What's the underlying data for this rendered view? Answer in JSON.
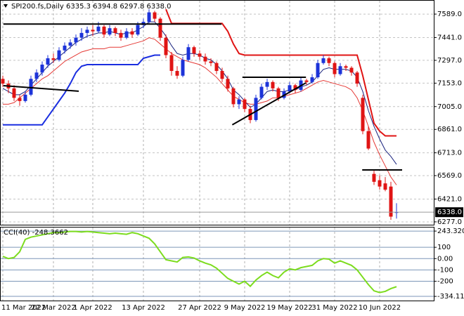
{
  "chart_data": [
    {
      "type": "candlestick",
      "title": "SPI200.fs,Daily  6335.3 6394.8 6297.8 6338.0",
      "categories": [
        "11 Mar 2022",
        null,
        null,
        null,
        null,
        null,
        null,
        null,
        null,
        "22 Mar 2022",
        null,
        null,
        null,
        null,
        null,
        null,
        "1 Apr 2022",
        null,
        null,
        null,
        null,
        null,
        null,
        null,
        null,
        "13 Apr 2022",
        null,
        null,
        null,
        null,
        null,
        null,
        null,
        null,
        null,
        "27 Apr 2022",
        null,
        null,
        null,
        null,
        null,
        null,
        null,
        "9 May 2022",
        null,
        null,
        null,
        null,
        null,
        null,
        null,
        "19 May 2022",
        null,
        null,
        null,
        null,
        null,
        null,
        null,
        "31 May 2022",
        null,
        null,
        null,
        null,
        null,
        null,
        null,
        "10 Jun 2022",
        null,
        null,
        null
      ],
      "ohlc": [
        [
          7180,
          7200,
          7130,
          7150
        ],
        [
          7150,
          7170,
          7090,
          7120
        ],
        [
          7120,
          7140,
          7040,
          7060
        ],
        [
          7060,
          7080,
          7010,
          7040
        ],
        [
          7040,
          7100,
          7030,
          7080
        ],
        [
          7080,
          7200,
          7070,
          7180
        ],
        [
          7180,
          7240,
          7160,
          7220
        ],
        [
          7220,
          7290,
          7200,
          7270
        ],
        [
          7270,
          7330,
          7250,
          7310
        ],
        [
          7310,
          7340,
          7280,
          7300
        ],
        [
          7300,
          7380,
          7290,
          7360
        ],
        [
          7360,
          7410,
          7340,
          7390
        ],
        [
          7390,
          7430,
          7370,
          7410
        ],
        [
          7410,
          7460,
          7390,
          7440
        ],
        [
          7440,
          7500,
          7420,
          7470
        ],
        [
          7470,
          7510,
          7440,
          7490
        ],
        [
          7490,
          7520,
          7450,
          7480
        ],
        [
          7480,
          7540,
          7470,
          7510
        ],
        [
          7510,
          7520,
          7440,
          7460
        ],
        [
          7460,
          7520,
          7450,
          7500
        ],
        [
          7500,
          7510,
          7450,
          7470
        ],
        [
          7470,
          7490,
          7420,
          7440
        ],
        [
          7440,
          7500,
          7430,
          7480
        ],
        [
          7480,
          7500,
          7440,
          7460
        ],
        [
          7460,
          7540,
          7450,
          7520
        ],
        [
          7520,
          7560,
          7500,
          7540
        ],
        [
          7540,
          7620,
          7530,
          7600
        ],
        [
          7600,
          7610,
          7540,
          7560
        ],
        [
          7560,
          7570,
          7420,
          7440
        ],
        [
          7440,
          7460,
          7310,
          7330
        ],
        [
          7330,
          7350,
          7200,
          7230
        ],
        [
          7230,
          7260,
          7180,
          7200
        ],
        [
          7200,
          7320,
          7190,
          7300
        ],
        [
          7300,
          7400,
          7290,
          7380
        ],
        [
          7380,
          7390,
          7320,
          7340
        ],
        [
          7340,
          7360,
          7300,
          7320
        ],
        [
          7320,
          7340,
          7270,
          7290
        ],
        [
          7290,
          7310,
          7260,
          7280
        ],
        [
          7280,
          7290,
          7210,
          7230
        ],
        [
          7230,
          7250,
          7160,
          7180
        ],
        [
          7180,
          7200,
          7100,
          7120
        ],
        [
          7120,
          7130,
          7000,
          7020
        ],
        [
          7020,
          7070,
          6990,
          7050
        ],
        [
          7050,
          7060,
          6970,
          6990
        ],
        [
          6990,
          7010,
          6900,
          6920
        ],
        [
          6920,
          7080,
          6910,
          7060
        ],
        [
          7060,
          7150,
          7050,
          7130
        ],
        [
          7130,
          7180,
          7110,
          7160
        ],
        [
          7160,
          7170,
          7100,
          7120
        ],
        [
          7120,
          7130,
          7040,
          7060
        ],
        [
          7060,
          7120,
          7050,
          7100
        ],
        [
          7100,
          7160,
          7090,
          7140
        ],
        [
          7140,
          7150,
          7090,
          7110
        ],
        [
          7110,
          7190,
          7100,
          7170
        ],
        [
          7170,
          7180,
          7140,
          7160
        ],
        [
          7160,
          7210,
          7150,
          7190
        ],
        [
          7190,
          7300,
          7180,
          7280
        ],
        [
          7280,
          7330,
          7270,
          7310
        ],
        [
          7310,
          7320,
          7260,
          7280
        ],
        [
          7280,
          7290,
          7190,
          7210
        ],
        [
          7210,
          7280,
          7200,
          7260
        ],
        [
          7260,
          7270,
          7230,
          7250
        ],
        [
          7250,
          7260,
          7200,
          7220
        ],
        [
          7220,
          7230,
          7130,
          7150
        ],
        [
          7060,
          7080,
          6830,
          6850
        ],
        [
          6850,
          6880,
          6730,
          6740
        ],
        [
          6580,
          6600,
          6510,
          6530
        ],
        [
          6540,
          6570,
          6480,
          6500
        ],
        [
          6520,
          6560,
          6470,
          6480
        ],
        [
          6500,
          6530,
          6290,
          6310
        ],
        [
          6335.3,
          6394.8,
          6297.8,
          6338.0
        ]
      ],
      "up_color": "#1c33d9",
      "down_color": "#e01414",
      "series": [
        {
          "color": "#e01414",
          "width": 2,
          "values": [
            null,
            null,
            null,
            null,
            null,
            null,
            null,
            null,
            null,
            null,
            null,
            null,
            null,
            null,
            null,
            null,
            null,
            null,
            null,
            null,
            null,
            null,
            null,
            null,
            null,
            null,
            null,
            null,
            null,
            7620,
            7530,
            7530,
            7530,
            7530,
            7530,
            7530,
            7530,
            7530,
            7530,
            7530,
            7480,
            7400,
            7340,
            7330,
            7330,
            7330,
            7330,
            7330,
            7330,
            7330,
            7330,
            7330,
            7330,
            7330,
            7330,
            7330,
            7330,
            7330,
            7330,
            7330,
            7330,
            7330,
            7330,
            7330,
            7200,
            7050,
            6900,
            6850,
            6820,
            6820,
            6820
          ]
        },
        {
          "color": "#1a2ee0",
          "width": 2,
          "values": [
            6890,
            6890,
            6890,
            6890,
            6890,
            6890,
            6890,
            6890,
            6940,
            6990,
            7040,
            7090,
            7150,
            7220,
            7260,
            7270,
            7270,
            7270,
            7270,
            7270,
            7270,
            7270,
            7270,
            7270,
            7270,
            7310,
            7320,
            7330,
            7330,
            null,
            null,
            null,
            null,
            null,
            null,
            null,
            null,
            null,
            null,
            null,
            null,
            null,
            null,
            null,
            null,
            null,
            null,
            null,
            null,
            null,
            null,
            null,
            null,
            null,
            null,
            null,
            null,
            null,
            null,
            null,
            null,
            null,
            null,
            null,
            null,
            null,
            null,
            null,
            null,
            null,
            null
          ]
        },
        {
          "color": "#e53935",
          "width": 1,
          "values": [
            7020,
            7020,
            7030,
            7060,
            7090,
            7120,
            7150,
            7180,
            7200,
            7230,
            7260,
            7290,
            7310,
            7330,
            7350,
            7360,
            7370,
            7370,
            7370,
            7380,
            7380,
            7380,
            7390,
            7400,
            7410,
            7420,
            7440,
            7430,
            7400,
            7370,
            7340,
            7320,
            7300,
            7290,
            7280,
            7270,
            7250,
            7220,
            7190,
            7150,
            7110,
            7070,
            7050,
            7030,
            7020,
            7020,
            7030,
            7040,
            7060,
            7060,
            7070,
            7080,
            7090,
            7100,
            7120,
            7140,
            7160,
            7170,
            7160,
            7150,
            7140,
            7130,
            7110,
            7060,
            6980,
            6880,
            6780,
            6700,
            6630,
            6560,
            6510
          ]
        },
        {
          "color": "#1a237e",
          "width": 1,
          "values": [
            7120,
            7100,
            7080,
            7080,
            7100,
            7140,
            7180,
            7220,
            7260,
            7290,
            7320,
            7350,
            7380,
            7410,
            7430,
            7450,
            7460,
            7470,
            7470,
            7480,
            7470,
            7460,
            7470,
            7470,
            7490,
            7510,
            7540,
            7540,
            7500,
            7450,
            7390,
            7340,
            7330,
            7340,
            7340,
            7330,
            7310,
            7300,
            7270,
            7230,
            7180,
            7110,
            7080,
            7040,
            7000,
            7020,
            7060,
            7100,
            7110,
            7100,
            7100,
            7110,
            7110,
            7130,
            7140,
            7160,
            7200,
            7240,
            7250,
            7240,
            7240,
            7240,
            7230,
            7190,
            7100,
            6980,
            6880,
            6800,
            6730,
            6690,
            6640
          ]
        }
      ],
      "trendlines": [
        {
          "x": [
            0.1,
            38.9
          ],
          "y": [
            7526,
            7526
          ]
        },
        {
          "x": [
            0.1,
            13.5
          ],
          "y": [
            7137,
            7102
          ]
        },
        {
          "x": [
            42.6,
            53.9
          ],
          "y": [
            7190,
            7190
          ]
        },
        {
          "x": [
            40.8,
            53.9
          ],
          "y": [
            6890,
            7155
          ]
        },
        {
          "x": [
            63.9,
            71
          ],
          "y": [
            6605,
            6605
          ]
        }
      ],
      "last_price": {
        "value": 6338.0,
        "label": "6338.0"
      },
      "ylim": [
        6259,
        7678
      ],
      "yticks": [
        {
          "value": 7589,
          "label": "7589.0"
        },
        {
          "value": 7441,
          "label": "7441.0"
        },
        {
          "value": 7297,
          "label": "7297.0"
        },
        {
          "value": 7153,
          "label": "7153.0"
        },
        {
          "value": 7005,
          "label": "7005.0"
        },
        {
          "value": 6861,
          "label": "6861.0"
        },
        {
          "value": 6713,
          "label": "6713.0"
        },
        {
          "value": 6569,
          "label": "6569.0"
        },
        {
          "value": 6421,
          "label": "6421.0"
        },
        {
          "value": 6277,
          "label": "6277.0"
        }
      ],
      "grid": true,
      "grid_color": "#c4c4c4",
      "grid_dashed": true
    },
    {
      "type": "line",
      "title": "CCI(40) -248.3662",
      "color": "#7cdc1e",
      "width": 2,
      "values": [
        20,
        0,
        10,
        60,
        170,
        190,
        200,
        210,
        220,
        230,
        230,
        235,
        240,
        240,
        235,
        240,
        235,
        230,
        225,
        220,
        225,
        220,
        215,
        230,
        220,
        200,
        180,
        130,
        60,
        -10,
        -20,
        -30,
        10,
        15,
        5,
        -20,
        -40,
        -55,
        -85,
        -130,
        -175,
        -200,
        -225,
        -200,
        -245,
        -190,
        -150,
        -120,
        -150,
        -170,
        -120,
        -90,
        -100,
        -80,
        -70,
        -60,
        -20,
        0,
        -5,
        -40,
        -20,
        -40,
        -60,
        -100,
        -165,
        -230,
        -285,
        -300,
        -290,
        -265,
        -248.3662
      ],
      "ylim": [
        -371,
        281
      ],
      "yticks": [
        {
          "value": 243.3203,
          "label": "243.3203"
        },
        100,
        {
          "value": 0,
          "label": "0.00"
        },
        -100,
        -200,
        {
          "value": -334.11,
          "label": "-334.110"
        }
      ],
      "grid": true,
      "grid_color": "#7d96b8",
      "grid_dashed": false
    }
  ]
}
